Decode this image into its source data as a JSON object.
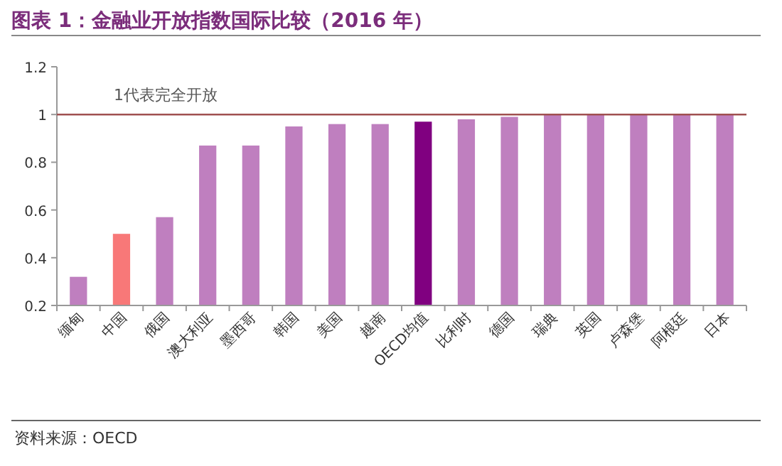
{
  "chart_data": {
    "type": "bar",
    "title": "图表 1：金融业开放指数国际比较（2016 年）",
    "categories": [
      "缅甸",
      "中国",
      "俄国",
      "澳大利亚",
      "墨西哥",
      "韩国",
      "美国",
      "越南",
      "OECD均值",
      "比利时",
      "德国",
      "瑞典",
      "英国",
      "卢森堡",
      "阿根廷",
      "日本"
    ],
    "values": [
      0.32,
      0.5,
      0.57,
      0.87,
      0.87,
      0.95,
      0.96,
      0.96,
      0.97,
      0.98,
      0.99,
      1,
      1,
      1,
      1,
      1
    ],
    "colors": [
      "#bf7fbf",
      "#f87878",
      "#bf7fbf",
      "#bf7fbf",
      "#bf7fbf",
      "#bf7fbf",
      "#bf7fbf",
      "#bf7fbf",
      "#800080",
      "#bf7fbf",
      "#bf7fbf",
      "#bf7fbf",
      "#bf7fbf",
      "#bf7fbf",
      "#bf7fbf",
      "#bf7fbf"
    ],
    "ylim": [
      0.2,
      1.2
    ],
    "yticks": [
      0.2,
      0.4,
      0.6,
      0.8,
      1,
      1.2
    ],
    "ref_lines": [
      {
        "axis": "y",
        "value": 1,
        "label": "1代表完全开放",
        "color": "#a05050"
      }
    ],
    "grid": false,
    "annotations": [
      "资料来源：OECD"
    ]
  }
}
